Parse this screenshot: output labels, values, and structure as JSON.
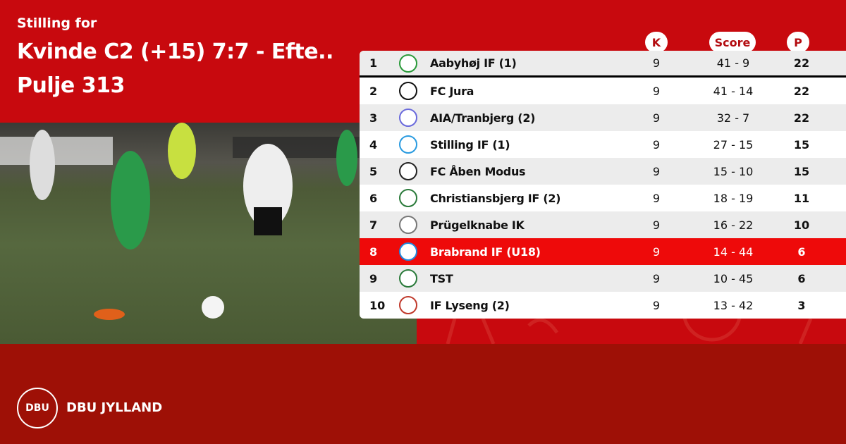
{
  "header": {
    "subtitle": "Stilling for",
    "title_line1": "Kvinde C2 (+15) 7:7 - Efte..",
    "title_line2": "Pulje 313"
  },
  "columns": {
    "k": "K",
    "score": "Score",
    "p": "P"
  },
  "rows": [
    {
      "pos": "1",
      "team": "Aabyhøj IF  (1)",
      "k": "9",
      "score": "41 - 9",
      "p": "22",
      "logo_color": "#2a9a3a"
    },
    {
      "pos": "2",
      "team": "FC Jura",
      "k": "9",
      "score": "41 - 14",
      "p": "22",
      "logo_color": "#111111"
    },
    {
      "pos": "3",
      "team": "AIA/Tranbjerg (2)",
      "k": "9",
      "score": "32 - 7",
      "p": "22",
      "logo_color": "#6a6adc"
    },
    {
      "pos": "4",
      "team": "Stilling IF (1)",
      "k": "9",
      "score": "27 - 15",
      "p": "15",
      "logo_color": "#2a9be0"
    },
    {
      "pos": "5",
      "team": "FC Åben Modus",
      "k": "9",
      "score": "15 - 10",
      "p": "15",
      "logo_color": "#222222"
    },
    {
      "pos": "6",
      "team": "Christiansbjerg IF (2)",
      "k": "9",
      "score": "18 - 19",
      "p": "11",
      "logo_color": "#2a7a3a"
    },
    {
      "pos": "7",
      "team": "Prügelknabe IK",
      "k": "9",
      "score": "16 - 22",
      "p": "10",
      "logo_color": "#777777"
    },
    {
      "pos": "8",
      "team": "Brabrand IF (U18)",
      "k": "9",
      "score": "14 - 44",
      "p": "6",
      "logo_color": "#1e8ae0",
      "highlighted": true
    },
    {
      "pos": "9",
      "team": "TST",
      "k": "9",
      "score": "10 - 45",
      "p": "6",
      "logo_color": "#2a7a3a"
    },
    {
      "pos": "10",
      "team": "IF Lyseng (2)",
      "k": "9",
      "score": "13 - 42",
      "p": "3",
      "logo_color": "#c0392b"
    }
  ],
  "footer": {
    "brand": "DBU JYLLAND",
    "logo_text": "DBU"
  },
  "colors": {
    "top_bg": "#c8090e",
    "bottom_bg": "#9e1006",
    "highlight": "#ee0a0a"
  }
}
